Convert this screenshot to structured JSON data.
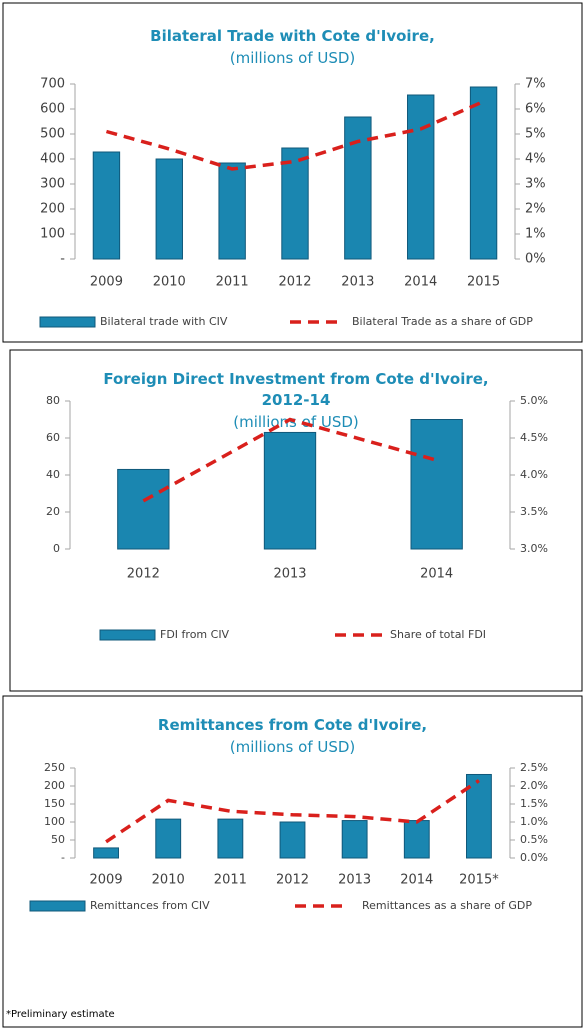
{
  "chart_data": [
    {
      "type": "combo",
      "title": "Bilateral Trade with Cote d'Ivoire,",
      "subtitle": "(millions of USD)",
      "categories": [
        "2009",
        "2010",
        "2011",
        "2012",
        "2013",
        "2014",
        "2015"
      ],
      "series": [
        {
          "name": "Bilateral trade with CIV",
          "type": "bar",
          "color": "#1a86b0",
          "values": [
            428,
            400,
            384,
            444,
            568,
            656,
            688
          ]
        },
        {
          "name": "Bilateral Trade as a share of GDP",
          "type": "line",
          "axis": "y2",
          "color": "#d9201c",
          "values": [
            5.1,
            4.4,
            3.6,
            3.9,
            4.7,
            5.2,
            6.3
          ]
        }
      ],
      "ylim": [
        0,
        700
      ],
      "yticks": [
        {
          "value": 0,
          "label": "-"
        },
        100,
        200,
        300,
        400,
        500,
        600,
        700
      ],
      "y2lim": [
        0,
        7
      ],
      "y2ticks": [
        {
          "value": 0,
          "label": "0%"
        },
        {
          "value": 1,
          "label": "1%"
        },
        {
          "value": 2,
          "label": "2%"
        },
        {
          "value": 3,
          "label": "3%"
        },
        {
          "value": 4,
          "label": "4%"
        },
        {
          "value": 5,
          "label": "5%"
        },
        {
          "value": 6,
          "label": "6%"
        },
        {
          "value": 7,
          "label": "7%"
        }
      ],
      "legend": "bottom"
    },
    {
      "type": "combo",
      "title": "Foreign Direct Investment from Cote d'Ivoire, 2012-14",
      "subtitle": "(millions of USD)",
      "categories": [
        "2012",
        "2013",
        "2014"
      ],
      "series": [
        {
          "name": "FDI from CIV",
          "type": "bar",
          "color": "#1a86b0",
          "values": [
            43,
            63,
            70
          ]
        },
        {
          "name": "Share of total FDI",
          "type": "line",
          "axis": "y2",
          "color": "#d9201c",
          "values": [
            3.65,
            4.75,
            4.2
          ]
        }
      ],
      "ylim": [
        0,
        80
      ],
      "yticks": [
        0,
        20,
        40,
        60,
        80
      ],
      "y2lim": [
        3,
        5
      ],
      "y2ticks": [
        {
          "value": 3,
          "label": "3.0%"
        },
        {
          "value": 3.5,
          "label": "3.5%"
        },
        {
          "value": 4,
          "label": "4.0%"
        },
        {
          "value": 4.5,
          "label": "4.5%"
        },
        {
          "value": 5,
          "label": "5.0%"
        }
      ],
      "legend": "bottom"
    },
    {
      "type": "combo",
      "title": "Remittances from Cote d'Ivoire,",
      "subtitle": "(millions of USD)",
      "categories": [
        "2009",
        "2010",
        "2011",
        "2012",
        "2013",
        "2014",
        "2015*"
      ],
      "series": [
        {
          "name": "Remittances from CIV",
          "type": "bar",
          "color": "#1a86b0",
          "values": [
            28,
            108,
            108,
            100,
            104,
            104,
            232
          ]
        },
        {
          "name": "Remittances as a share of GDP",
          "type": "line",
          "axis": "y2",
          "color": "#d9201c",
          "values": [
            0.45,
            1.6,
            1.3,
            1.2,
            1.15,
            1.0,
            2.15
          ]
        }
      ],
      "ylim": [
        0,
        250
      ],
      "yticks": [
        {
          "value": 0,
          "label": "-"
        },
        50,
        100,
        150,
        200,
        250
      ],
      "y2lim": [
        0,
        2.5
      ],
      "y2ticks": [
        {
          "value": 0,
          "label": "0.0%"
        },
        {
          "value": 0.5,
          "label": "0.5%"
        },
        {
          "value": 1,
          "label": "1.0%"
        },
        {
          "value": 1.5,
          "label": "1.5%"
        },
        {
          "value": 2,
          "label": "2.0%"
        },
        {
          "value": 2.5,
          "label": "2.5%"
        }
      ],
      "legend": "bottom",
      "footnote": "*Preliminary estimate"
    }
  ]
}
